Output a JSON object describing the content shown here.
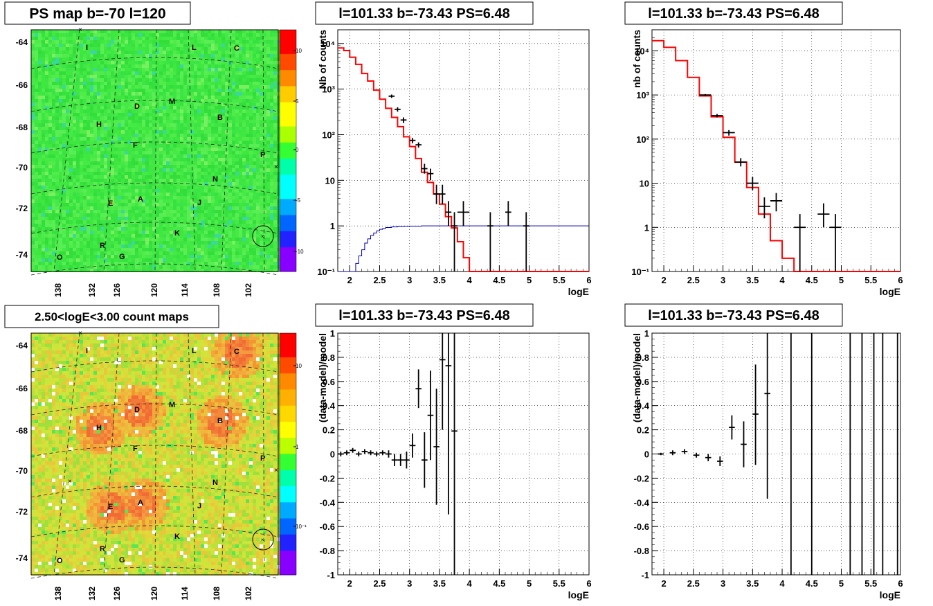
{
  "maps": [
    {
      "title": "PS map b=-70 l=120",
      "type": "heatmap",
      "y_ticks": [
        "-64",
        "-66",
        "-68",
        "-70",
        "-72",
        "-74"
      ],
      "x_ticks": [
        "138",
        "132",
        "126",
        "120",
        "114",
        "108",
        "102"
      ],
      "palette_ticks": [
        "10",
        "5",
        "0",
        "-5",
        "-10"
      ],
      "scale": "linear",
      "base_color": "#3fe83f",
      "labels": [
        "I",
        "L",
        "C",
        "D",
        "M",
        "H",
        "B",
        "F",
        "P",
        "N",
        "E",
        "A",
        "J",
        "K",
        "R",
        "O",
        "G"
      ]
    },
    {
      "title": "2.50<logE<3.00 count maps",
      "type": "heatmap",
      "y_ticks": [
        "-64",
        "-66",
        "-68",
        "-70",
        "-72",
        "-74"
      ],
      "x_ticks": [
        "138",
        "132",
        "126",
        "120",
        "114",
        "108",
        "102"
      ],
      "palette_ticks": [
        "10",
        "1",
        "10⁻¹"
      ],
      "scale": "log",
      "base_color": "#c8e63c",
      "labels": [
        "I",
        "L",
        "C",
        "D",
        "M",
        "H",
        "B",
        "F",
        "P",
        "N",
        "E",
        "A",
        "J",
        "K",
        "R",
        "O",
        "G"
      ]
    }
  ],
  "chart_data": [
    {
      "type": "line",
      "title": "l=101.33 b=-73.43 PS=6.48",
      "xlabel": "logE",
      "ylabel": "Nb of counts",
      "xlim": [
        1.8,
        6.0
      ],
      "ylim": [
        0.1,
        20000
      ],
      "yscale": "log",
      "grid": true,
      "x_ticks": [
        "2",
        "2.5",
        "3",
        "3.5",
        "4",
        "4.5",
        "5",
        "5.5",
        "6"
      ],
      "y_ticks": [
        "10⁻¹",
        "1",
        "10",
        "10²",
        "10³",
        "10⁴"
      ],
      "model_red": {
        "edges": [
          1.8,
          1.9,
          2.0,
          2.1,
          2.2,
          2.3,
          2.4,
          2.5,
          2.6,
          2.7,
          2.8,
          2.9,
          3.0,
          3.1,
          3.2,
          3.3,
          3.4,
          3.5,
          3.6,
          3.7,
          3.8,
          3.9,
          4.0,
          6.0
        ],
        "values": [
          8000,
          7000,
          5000,
          3500,
          2200,
          1500,
          950,
          600,
          380,
          240,
          150,
          90,
          55,
          30,
          15,
          9,
          5,
          3,
          1.6,
          0.9,
          0.45,
          0.2,
          0.1
        ]
      },
      "efficiency_blue": {
        "edges": [
          1.8,
          2.0,
          2.1,
          2.15,
          2.2,
          2.25,
          2.3,
          2.35,
          2.4,
          2.45,
          2.5,
          2.55,
          2.6,
          2.7,
          2.8,
          2.9,
          3.0,
          3.2,
          6.0
        ],
        "values": [
          0.1,
          0.1,
          0.15,
          0.22,
          0.3,
          0.42,
          0.52,
          0.62,
          0.7,
          0.78,
          0.84,
          0.88,
          0.92,
          0.95,
          0.97,
          0.98,
          0.99,
          1.0
        ]
      },
      "data_points": [
        {
          "x": 2.7,
          "y": 700,
          "xerr": 0.05,
          "ylo": 640,
          "yhi": 760
        },
        {
          "x": 2.8,
          "y": 360,
          "xerr": 0.05,
          "ylo": 320,
          "yhi": 400
        },
        {
          "x": 2.9,
          "y": 210,
          "xerr": 0.05,
          "ylo": 180,
          "yhi": 240
        },
        {
          "x": 3.05,
          "y": 75,
          "xerr": 0.05,
          "ylo": 65,
          "yhi": 85
        },
        {
          "x": 3.15,
          "y": 60,
          "xerr": 0.05,
          "ylo": 52,
          "yhi": 68
        },
        {
          "x": 3.25,
          "y": 18,
          "xerr": 0.05,
          "ylo": 14,
          "yhi": 23
        },
        {
          "x": 3.35,
          "y": 14,
          "xerr": 0.05,
          "ylo": 10,
          "yhi": 18
        },
        {
          "x": 3.45,
          "y": 5,
          "xerr": 0.05,
          "ylo": 3,
          "yhi": 8
        },
        {
          "x": 3.55,
          "y": 5,
          "xerr": 0.05,
          "ylo": 3,
          "yhi": 8
        },
        {
          "x": 3.65,
          "y": 2,
          "xerr": 0.05,
          "ylo": 1,
          "yhi": 3.5
        },
        {
          "x": 3.75,
          "y": 1,
          "xerr": 0.05,
          "ylo": 0.1,
          "yhi": 2
        },
        {
          "x": 3.9,
          "y": 2,
          "xerr": 0.1,
          "ylo": 1,
          "yhi": 3.5
        },
        {
          "x": 4.35,
          "y": 1,
          "xerr": 0.05,
          "ylo": 0.1,
          "yhi": 2
        },
        {
          "x": 4.65,
          "y": 2,
          "xerr": 0.05,
          "ylo": 1,
          "yhi": 3.5
        },
        {
          "x": 4.95,
          "y": 1,
          "xerr": 0.05,
          "ylo": 0.1,
          "yhi": 2
        }
      ]
    },
    {
      "type": "line",
      "title": "l=101.33 b=-73.43 PS=6.48",
      "xlabel": "logE",
      "ylabel": "nb of counts",
      "xlim": [
        1.8,
        6.0
      ],
      "ylim": [
        0.1,
        30000
      ],
      "yscale": "log",
      "grid": true,
      "x_ticks": [
        "2",
        "2.5",
        "3",
        "3.5",
        "4",
        "4.5",
        "5",
        "5.5",
        "6"
      ],
      "y_ticks": [
        "10⁻¹",
        "1",
        "10",
        "10²",
        "10³",
        "10⁴"
      ],
      "model_red": {
        "edges": [
          1.8,
          2.0,
          2.2,
          2.4,
          2.6,
          2.8,
          3.0,
          3.2,
          3.4,
          3.6,
          3.8,
          4.0,
          4.2,
          6.0
        ],
        "values": [
          17000,
          12000,
          6000,
          2500,
          950,
          320,
          110,
          30,
          8,
          2,
          0.5,
          0.2,
          0.1
        ]
      },
      "data_points": [
        {
          "x": 2.7,
          "y": 1000,
          "xerr": 0.1,
          "ylo": 950,
          "yhi": 1050
        },
        {
          "x": 2.9,
          "y": 340,
          "xerr": 0.1,
          "ylo": 310,
          "yhi": 370
        },
        {
          "x": 3.1,
          "y": 140,
          "xerr": 0.1,
          "ylo": 120,
          "yhi": 160
        },
        {
          "x": 3.3,
          "y": 30,
          "xerr": 0.1,
          "ylo": 24,
          "yhi": 37
        },
        {
          "x": 3.5,
          "y": 10,
          "xerr": 0.1,
          "ylo": 7,
          "yhi": 14
        },
        {
          "x": 3.7,
          "y": 3,
          "xerr": 0.1,
          "ylo": 1.6,
          "yhi": 4.8
        },
        {
          "x": 3.9,
          "y": 4,
          "xerr": 0.1,
          "ylo": 2.3,
          "yhi": 6
        },
        {
          "x": 4.3,
          "y": 1,
          "xerr": 0.1,
          "ylo": 0.1,
          "yhi": 2
        },
        {
          "x": 4.7,
          "y": 2,
          "xerr": 0.1,
          "ylo": 1,
          "yhi": 3.5
        },
        {
          "x": 4.9,
          "y": 1,
          "xerr": 0.1,
          "ylo": 0.1,
          "yhi": 2
        }
      ]
    },
    {
      "type": "scatter",
      "title": "l=101.33 b=-73.43 PS=6.48",
      "xlabel": "logE",
      "ylabel": "(data-model)/model",
      "xlim": [
        1.8,
        6.0
      ],
      "ylim": [
        -1,
        1
      ],
      "grid": true,
      "x_ticks": [
        "2",
        "2.5",
        "3",
        "3.5",
        "4",
        "4.5",
        "5",
        "5.5",
        "6"
      ],
      "y_ticks": [
        "-1",
        "-0.8",
        "-0.6",
        "-0.4",
        "-0.2",
        "0",
        "0.2",
        "0.4",
        "0.6",
        "0.8",
        "1"
      ],
      "data_points": [
        {
          "x": 1.85,
          "y": 0.0,
          "ylo": -0.02,
          "yhi": 0.02
        },
        {
          "x": 1.95,
          "y": 0.01,
          "ylo": -0.01,
          "yhi": 0.03
        },
        {
          "x": 2.05,
          "y": 0.03,
          "ylo": 0.01,
          "yhi": 0.05
        },
        {
          "x": 2.15,
          "y": 0.0,
          "ylo": -0.02,
          "yhi": 0.02
        },
        {
          "x": 2.25,
          "y": 0.02,
          "ylo": 0.0,
          "yhi": 0.04
        },
        {
          "x": 2.35,
          "y": 0.01,
          "ylo": -0.01,
          "yhi": 0.03
        },
        {
          "x": 2.45,
          "y": 0.0,
          "ylo": -0.02,
          "yhi": 0.02
        },
        {
          "x": 2.55,
          "y": 0.01,
          "ylo": -0.01,
          "yhi": 0.03
        },
        {
          "x": 2.65,
          "y": 0.0,
          "ylo": -0.03,
          "yhi": 0.03
        },
        {
          "x": 2.75,
          "y": -0.05,
          "ylo": -0.1,
          "yhi": 0.0
        },
        {
          "x": 2.85,
          "y": -0.05,
          "ylo": -0.1,
          "yhi": 0.0
        },
        {
          "x": 2.95,
          "y": -0.05,
          "ylo": -0.12,
          "yhi": 0.02
        },
        {
          "x": 3.05,
          "y": 0.07,
          "ylo": -0.03,
          "yhi": 0.17
        },
        {
          "x": 3.15,
          "y": 0.54,
          "ylo": 0.38,
          "yhi": 0.7
        },
        {
          "x": 3.25,
          "y": -0.05,
          "ylo": -0.28,
          "yhi": 0.18
        },
        {
          "x": 3.35,
          "y": 0.32,
          "ylo": -0.05,
          "yhi": 0.69
        },
        {
          "x": 3.45,
          "y": 0.06,
          "ylo": -0.42,
          "yhi": 0.54
        },
        {
          "x": 3.55,
          "y": 0.78,
          "ylo": 0.2,
          "yhi": 1.0
        },
        {
          "x": 3.65,
          "y": 0.73,
          "ylo": -0.5,
          "yhi": 1.0
        },
        {
          "x": 3.75,
          "y": 0.19,
          "ylo": -1.0,
          "yhi": 1.0
        }
      ]
    },
    {
      "type": "scatter",
      "title": "l=101.33 b=-73.43 PS=6.48",
      "xlabel": "logE",
      "ylabel": "(data-model)/model",
      "xlim": [
        1.8,
        6.0
      ],
      "ylim": [
        -1,
        1
      ],
      "grid": true,
      "x_ticks": [
        "2",
        "2.5",
        "3",
        "3.5",
        "4",
        "4.5",
        "5",
        "5.5",
        "6"
      ],
      "y_ticks": [
        "-1",
        "-0.8",
        "-0.6",
        "-0.4",
        "-0.2",
        "0",
        "0.2",
        "0.4",
        "0.6",
        "0.8",
        "1"
      ],
      "data_points": [
        {
          "x": 1.95,
          "y": 0.0,
          "ylo": -0.01,
          "yhi": 0.01
        },
        {
          "x": 2.15,
          "y": 0.01,
          "ylo": -0.01,
          "yhi": 0.03
        },
        {
          "x": 2.35,
          "y": 0.02,
          "ylo": 0.0,
          "yhi": 0.04
        },
        {
          "x": 2.55,
          "y": -0.01,
          "ylo": -0.03,
          "yhi": 0.01
        },
        {
          "x": 2.75,
          "y": -0.03,
          "ylo": -0.06,
          "yhi": 0.0
        },
        {
          "x": 2.95,
          "y": -0.06,
          "ylo": -0.1,
          "yhi": -0.02
        },
        {
          "x": 3.15,
          "y": 0.22,
          "ylo": 0.12,
          "yhi": 0.32
        },
        {
          "x": 3.35,
          "y": 0.08,
          "ylo": -0.11,
          "yhi": 0.27
        },
        {
          "x": 3.55,
          "y": 0.33,
          "ylo": -0.09,
          "yhi": 0.74
        },
        {
          "x": 3.75,
          "y": 0.5,
          "ylo": -0.37,
          "yhi": 1.0
        },
        {
          "x": 4.15,
          "y": null,
          "ylo": -1.0,
          "yhi": 1.0
        },
        {
          "x": 4.5,
          "y": null,
          "ylo": -1.0,
          "yhi": 1.0
        },
        {
          "x": 5.15,
          "y": null,
          "ylo": -1.0,
          "yhi": 1.0
        },
        {
          "x": 5.35,
          "y": null,
          "ylo": -1.0,
          "yhi": 1.0
        },
        {
          "x": 5.55,
          "y": null,
          "ylo": -1.0,
          "yhi": 1.0
        },
        {
          "x": 5.7,
          "y": null,
          "ylo": -1.0,
          "yhi": 1.0
        },
        {
          "x": 5.95,
          "y": null,
          "ylo": -1.0,
          "yhi": 1.0
        }
      ]
    }
  ]
}
